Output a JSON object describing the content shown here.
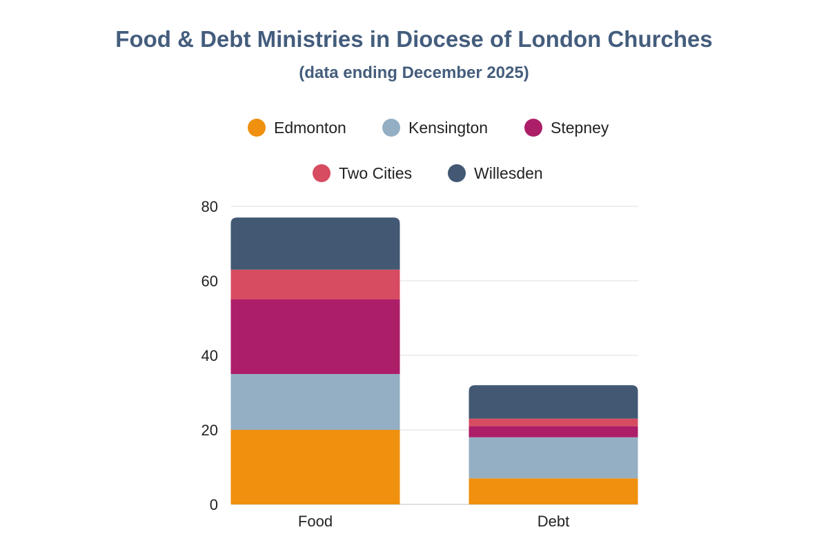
{
  "chart_data": {
    "type": "bar",
    "stacked": true,
    "title": "Food & Debt Ministries in Diocese of London Churches",
    "subtitle": "(data ending December 2025)",
    "categories": [
      "Food",
      "Debt"
    ],
    "series": [
      {
        "name": "Edmonton",
        "values": [
          20,
          7
        ],
        "color": "#f0900f"
      },
      {
        "name": "Kensington",
        "values": [
          15,
          11
        ],
        "color": "#94afc3"
      },
      {
        "name": "Stepney",
        "values": [
          20,
          3
        ],
        "color": "#ac1e68"
      },
      {
        "name": "Two Cities",
        "values": [
          8,
          2
        ],
        "color": "#d74c61"
      },
      {
        "name": "Willesden",
        "values": [
          14,
          9
        ],
        "color": "#425873"
      }
    ],
    "ylim": [
      0,
      80
    ],
    "yticks": [
      "0",
      "20",
      "40",
      "60",
      "80"
    ],
    "grid": true,
    "legend_position": "top"
  }
}
